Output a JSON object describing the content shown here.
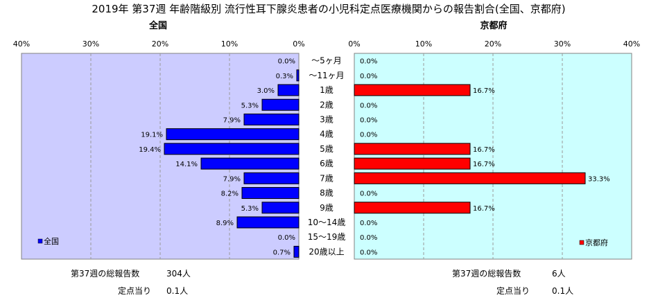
{
  "chart_data": {
    "type": "bar",
    "title": "2019年 第37週 年齢階級別 流行性耳下腺炎患者の小児科定点医療機関からの報告割合(全国、京都府)",
    "categories": [
      "～5ヶ月",
      "～11ヶ月",
      "1歳",
      "2歳",
      "3歳",
      "4歳",
      "5歳",
      "6歳",
      "7歳",
      "8歳",
      "9歳",
      "10～14歳",
      "15～19歳",
      "20歳以上"
    ],
    "xlim": [
      0,
      40
    ],
    "ticks": [
      0,
      10,
      20,
      30,
      40
    ],
    "tick_labels": [
      "0%",
      "10%",
      "20%",
      "30%",
      "40%"
    ],
    "grid": true,
    "series": [
      {
        "name": "全国",
        "panel_title": "全国",
        "legend": "全国",
        "color": "#0000ff",
        "direction": "left",
        "values": [
          0.0,
          0.3,
          3.0,
          5.3,
          7.9,
          19.1,
          19.4,
          14.1,
          7.9,
          8.2,
          5.3,
          8.9,
          0.0,
          0.7
        ],
        "labels": [
          "0.0%",
          "0.3%",
          "3.0%",
          "5.3%",
          "7.9%",
          "19.1%",
          "19.4%",
          "14.1%",
          "7.9%",
          "8.2%",
          "5.3%",
          "8.9%",
          "0.0%",
          "0.7%"
        ]
      },
      {
        "name": "京都府",
        "panel_title": "京都府",
        "legend": "京都府",
        "color": "#ff0000",
        "direction": "right",
        "values": [
          0.0,
          0.0,
          16.7,
          0.0,
          0.0,
          0.0,
          16.7,
          16.7,
          33.3,
          0.0,
          16.7,
          0.0,
          0.0,
          0.0
        ],
        "labels": [
          "0.0%",
          "0.0%",
          "16.7%",
          "0.0%",
          "0.0%",
          "0.0%",
          "16.7%",
          "16.7%",
          "33.3%",
          "0.0%",
          "16.7%",
          "0.0%",
          "0.0%",
          "0.0%"
        ]
      }
    ],
    "left_bg_color": "#ccccff",
    "right_bg_color": "#ccffff"
  },
  "summary": {
    "national": {
      "total_label": "第37週の総報告数",
      "total_value": "304人",
      "per_label": "定点当り",
      "per_value": "0.1人"
    },
    "kyoto": {
      "total_label": "第37週の総報告数",
      "total_value": "6人",
      "per_label": "定点当り",
      "per_value": "0.1人"
    }
  }
}
